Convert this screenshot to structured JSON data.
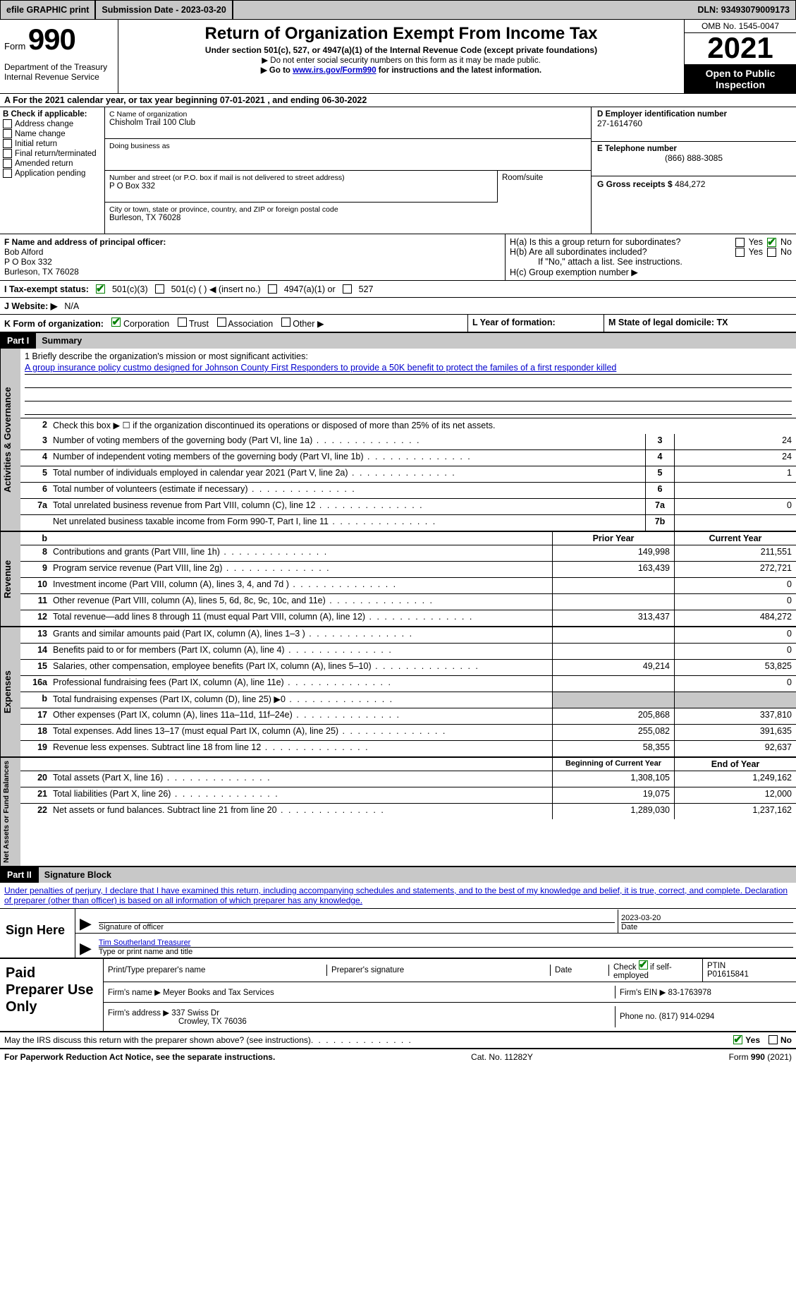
{
  "header": {
    "efile": "efile GRAPHIC print",
    "submission": "Submission Date - 2023-03-20",
    "dln": "DLN: 93493079009173"
  },
  "title": {
    "form_word": "Form",
    "form_num": "990",
    "main": "Return of Organization Exempt From Income Tax",
    "sub": "Under section 501(c), 527, or 4947(a)(1) of the Internal Revenue Code (except private foundations)",
    "note1": "▶ Do not enter social security numbers on this form as it may be made public.",
    "note2_pre": "▶ Go to ",
    "note2_link": "www.irs.gov/Form990",
    "note2_post": " for instructions and the latest information.",
    "omb": "OMB No. 1545-0047",
    "year": "2021",
    "inspection": "Open to Public Inspection",
    "dept": "Department of the Treasury Internal Revenue Service"
  },
  "rowA": "A For the 2021 calendar year, or tax year beginning 07-01-2021    , and ending 06-30-2022",
  "colB": {
    "title": "B Check if applicable:",
    "opts": [
      "Address change",
      "Name change",
      "Initial return",
      "Final return/terminated",
      "Amended return",
      "Application pending"
    ]
  },
  "colC": {
    "name_label": "C Name of organization",
    "name": "Chisholm Trail 100 Club",
    "dba": "Doing business as",
    "street_label": "Number and street (or P.O. box if mail is not delivered to street address)",
    "street": "P O Box 332",
    "suite_label": "Room/suite",
    "city_label": "City or town, state or province, country, and ZIP or foreign postal code",
    "city": "Burleson, TX  76028"
  },
  "colD": {
    "ein_label": "D Employer identification number",
    "ein": "27-1614760",
    "tel_label": "E Telephone number",
    "tel": "(866) 888-3085",
    "gross_label": "G Gross receipts $",
    "gross": "484,272"
  },
  "rowF": {
    "label": "F Name and address of principal officer:",
    "name": "Bob Alford",
    "addr1": "P O Box 332",
    "addr2": "Burleson, TX  76028"
  },
  "rowH": {
    "a": "H(a)  Is this a group return for subordinates?",
    "b": "H(b)  Are all subordinates included?",
    "b_note": "If \"No,\" attach a list. See instructions.",
    "c": "H(c)  Group exemption number ▶",
    "yes": "Yes",
    "no": "No"
  },
  "rowI": {
    "label": "I  Tax-exempt status:",
    "o1": "501(c)(3)",
    "o2": "501(c) (  ) ◀ (insert no.)",
    "o3": "4947(a)(1) or",
    "o4": "527"
  },
  "rowJ": {
    "label": "J  Website: ▶",
    "val": "N/A"
  },
  "rowK": {
    "label": "K Form of organization:",
    "opts": [
      "Corporation",
      "Trust",
      "Association",
      "Other ▶"
    ],
    "l": "L Year of formation:",
    "m": "M State of legal domicile: TX"
  },
  "part1": {
    "num": "Part I",
    "title": "Summary"
  },
  "mission": {
    "q": "1   Briefly describe the organization's mission or most significant activities:",
    "text": "A group insurance policy custmo designed for Johnson County First Responders to provide a 50K benefit to protect the familes of a first responder killed"
  },
  "line2": "Check this box ▶ ☐ if the organization discontinued its operations or disposed of more than 25% of its net assets.",
  "gov_lines": [
    {
      "n": "3",
      "d": "Number of voting members of the governing body (Part VI, line 1a)",
      "box": "3",
      "v": "24"
    },
    {
      "n": "4",
      "d": "Number of independent voting members of the governing body (Part VI, line 1b)",
      "box": "4",
      "v": "24"
    },
    {
      "n": "5",
      "d": "Total number of individuals employed in calendar year 2021 (Part V, line 2a)",
      "box": "5",
      "v": "1"
    },
    {
      "n": "6",
      "d": "Total number of volunteers (estimate if necessary)",
      "box": "6",
      "v": ""
    },
    {
      "n": "7a",
      "d": "Total unrelated business revenue from Part VIII, column (C), line 12",
      "box": "7a",
      "v": "0"
    },
    {
      "n": "",
      "d": "Net unrelated business taxable income from Form 990-T, Part I, line 11",
      "box": "7b",
      "v": ""
    }
  ],
  "yr_hdr": {
    "b": "b",
    "py": "Prior Year",
    "cy": "Current Year"
  },
  "rev_label": "Revenue",
  "rev_lines": [
    {
      "n": "8",
      "d": "Contributions and grants (Part VIII, line 1h)",
      "py": "149,998",
      "cy": "211,551"
    },
    {
      "n": "9",
      "d": "Program service revenue (Part VIII, line 2g)",
      "py": "163,439",
      "cy": "272,721"
    },
    {
      "n": "10",
      "d": "Investment income (Part VIII, column (A), lines 3, 4, and 7d )",
      "py": "",
      "cy": "0"
    },
    {
      "n": "11",
      "d": "Other revenue (Part VIII, column (A), lines 5, 6d, 8c, 9c, 10c, and 11e)",
      "py": "",
      "cy": "0"
    },
    {
      "n": "12",
      "d": "Total revenue—add lines 8 through 11 (must equal Part VIII, column (A), line 12)",
      "py": "313,437",
      "cy": "484,272"
    }
  ],
  "exp_label": "Expenses",
  "exp_lines": [
    {
      "n": "13",
      "d": "Grants and similar amounts paid (Part IX, column (A), lines 1–3 )",
      "py": "",
      "cy": "0"
    },
    {
      "n": "14",
      "d": "Benefits paid to or for members (Part IX, column (A), line 4)",
      "py": "",
      "cy": "0"
    },
    {
      "n": "15",
      "d": "Salaries, other compensation, employee benefits (Part IX, column (A), lines 5–10)",
      "py": "49,214",
      "cy": "53,825"
    },
    {
      "n": "16a",
      "d": "Professional fundraising fees (Part IX, column (A), line 11e)",
      "py": "",
      "cy": "0"
    },
    {
      "n": "b",
      "d": "Total fundraising expenses (Part IX, column (D), line 25) ▶0",
      "py": "shade",
      "cy": "shade"
    },
    {
      "n": "17",
      "d": "Other expenses (Part IX, column (A), lines 11a–11d, 11f–24e)",
      "py": "205,868",
      "cy": "337,810"
    },
    {
      "n": "18",
      "d": "Total expenses. Add lines 13–17 (must equal Part IX, column (A), line 25)",
      "py": "255,082",
      "cy": "391,635"
    },
    {
      "n": "19",
      "d": "Revenue less expenses. Subtract line 18 from line 12",
      "py": "58,355",
      "cy": "92,637"
    }
  ],
  "na_label": "Net Assets or Fund Balances",
  "na_hdr": {
    "py": "Beginning of Current Year",
    "cy": "End of Year"
  },
  "na_lines": [
    {
      "n": "20",
      "d": "Total assets (Part X, line 16)",
      "py": "1,308,105",
      "cy": "1,249,162"
    },
    {
      "n": "21",
      "d": "Total liabilities (Part X, line 26)",
      "py": "19,075",
      "cy": "12,000"
    },
    {
      "n": "22",
      "d": "Net assets or fund balances. Subtract line 21 from line 20",
      "py": "1,289,030",
      "cy": "1,237,162"
    }
  ],
  "part2": {
    "num": "Part II",
    "title": "Signature Block"
  },
  "sig": {
    "intro": "Under penalties of perjury, I declare that I have examined this return, including accompanying schedules and statements, and to the best of my knowledge and belief, it is true, correct, and complete. Declaration of preparer (other than officer) is based on all information of which preparer has any knowledge.",
    "here": "Sign Here",
    "sig_of": "Signature of officer",
    "date": "2023-03-20",
    "date_l": "Date",
    "name": "Tim Southerland  Treasurer",
    "name_l": "Type or print name and title"
  },
  "prep": {
    "label": "Paid Preparer Use Only",
    "h1": "Print/Type preparer's name",
    "h2": "Preparer's signature",
    "h3": "Date",
    "h4_pre": "Check",
    "h4_post": "if self-employed",
    "ptin_l": "PTIN",
    "ptin": "P01615841",
    "firm_l": "Firm's name    ▶",
    "firm": "Meyer Books and Tax Services",
    "fein_l": "Firm's EIN ▶",
    "fein": "83-1763978",
    "addr_l": "Firm's address ▶",
    "addr1": "337 Swiss Dr",
    "addr2": "Crowley, TX  76036",
    "phone_l": "Phone no.",
    "phone": "(817) 914-0294"
  },
  "footer": {
    "discuss": "May the IRS discuss this return with the preparer shown above? (see instructions)",
    "yes": "Yes",
    "no": "No",
    "pra": "For Paperwork Reduction Act Notice, see the separate instructions.",
    "cat": "Cat. No. 11282Y",
    "form": "Form 990 (2021)"
  },
  "gov_label": "Activities & Governance"
}
